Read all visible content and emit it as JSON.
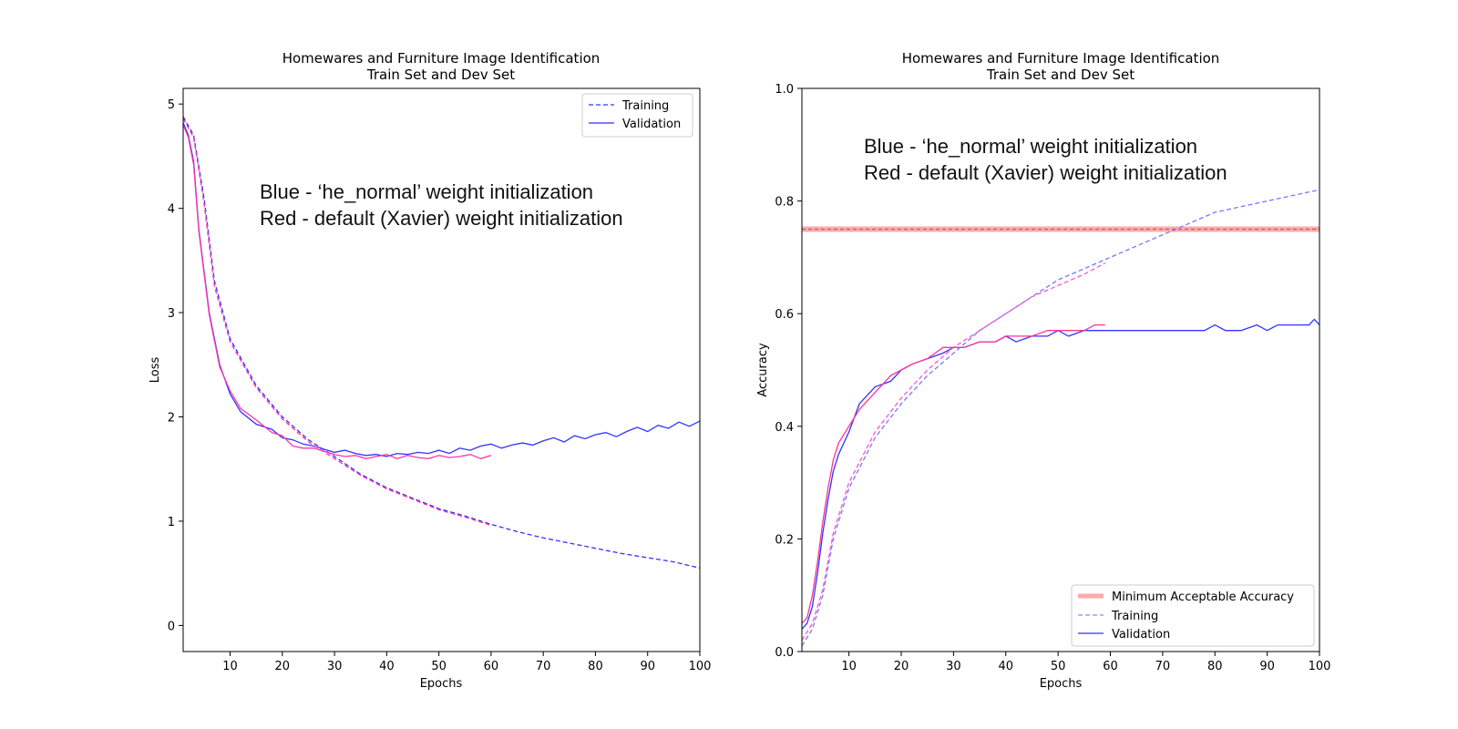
{
  "chart_data": [
    {
      "type": "line",
      "title": "Homewares and Furniture Image Identification",
      "subtitle": "Train Set and Dev Set",
      "xlabel": "Epochs",
      "ylabel": "Loss",
      "xlim": [
        1,
        100
      ],
      "ylim": [
        -0.25,
        5.15
      ],
      "xticks": [
        10,
        20,
        30,
        40,
        50,
        60,
        70,
        80,
        90,
        100
      ],
      "yticks": [
        0,
        1,
        2,
        3,
        4,
        5
      ],
      "grid": false,
      "annotation": [
        "Blue - ‘he_normal’ weight initialization",
        "Red - default (Xavier) weight initialization"
      ],
      "legend": {
        "position": "top-right",
        "entries": [
          {
            "label": "Training",
            "style": "dashed",
            "color": "#3333ff"
          },
          {
            "label": "Validation",
            "style": "solid",
            "color": "#3333ff"
          }
        ]
      },
      "series": [
        {
          "name": "Training (he_normal)",
          "color": "#3333ff",
          "style": "dashed",
          "points": [
            [
              1,
              4.88
            ],
            [
              3,
              4.7
            ],
            [
              5,
              4.1
            ],
            [
              7,
              3.3
            ],
            [
              10,
              2.75
            ],
            [
              15,
              2.3
            ],
            [
              20,
              2.0
            ],
            [
              25,
              1.78
            ],
            [
              30,
              1.62
            ],
            [
              35,
              1.45
            ],
            [
              40,
              1.32
            ],
            [
              45,
              1.22
            ],
            [
              50,
              1.12
            ],
            [
              55,
              1.05
            ],
            [
              60,
              0.97
            ],
            [
              65,
              0.9
            ],
            [
              70,
              0.84
            ],
            [
              75,
              0.79
            ],
            [
              80,
              0.74
            ],
            [
              85,
              0.69
            ],
            [
              90,
              0.65
            ],
            [
              95,
              0.61
            ],
            [
              100,
              0.55
            ]
          ]
        },
        {
          "name": "Validation (he_normal)",
          "color": "#3333ff",
          "style": "solid",
          "points": [
            [
              1,
              4.82
            ],
            [
              2,
              4.7
            ],
            [
              3,
              4.45
            ],
            [
              4,
              3.8
            ],
            [
              5,
              3.4
            ],
            [
              6,
              3.0
            ],
            [
              8,
              2.5
            ],
            [
              10,
              2.22
            ],
            [
              12,
              2.05
            ],
            [
              15,
              1.93
            ],
            [
              18,
              1.88
            ],
            [
              20,
              1.8
            ],
            [
              22,
              1.78
            ],
            [
              24,
              1.74
            ],
            [
              26,
              1.72
            ],
            [
              28,
              1.69
            ],
            [
              30,
              1.66
            ],
            [
              32,
              1.68
            ],
            [
              34,
              1.65
            ],
            [
              36,
              1.63
            ],
            [
              38,
              1.64
            ],
            [
              40,
              1.62
            ],
            [
              42,
              1.65
            ],
            [
              44,
              1.64
            ],
            [
              46,
              1.66
            ],
            [
              48,
              1.65
            ],
            [
              50,
              1.68
            ],
            [
              52,
              1.65
            ],
            [
              54,
              1.7
            ],
            [
              56,
              1.68
            ],
            [
              58,
              1.72
            ],
            [
              60,
              1.74
            ],
            [
              62,
              1.7
            ],
            [
              64,
              1.73
            ],
            [
              66,
              1.75
            ],
            [
              68,
              1.73
            ],
            [
              70,
              1.77
            ],
            [
              72,
              1.8
            ],
            [
              74,
              1.76
            ],
            [
              76,
              1.82
            ],
            [
              78,
              1.79
            ],
            [
              80,
              1.83
            ],
            [
              82,
              1.85
            ],
            [
              84,
              1.81
            ],
            [
              86,
              1.86
            ],
            [
              88,
              1.9
            ],
            [
              90,
              1.86
            ],
            [
              92,
              1.92
            ],
            [
              94,
              1.89
            ],
            [
              96,
              1.95
            ],
            [
              98,
              1.91
            ],
            [
              100,
              1.96
            ]
          ]
        },
        {
          "name": "Training (Xavier)",
          "color": "#ff33aa",
          "style": "dashed",
          "points": [
            [
              1,
              4.86
            ],
            [
              3,
              4.68
            ],
            [
              5,
              4.05
            ],
            [
              7,
              3.25
            ],
            [
              10,
              2.72
            ],
            [
              15,
              2.28
            ],
            [
              20,
              1.98
            ],
            [
              25,
              1.76
            ],
            [
              30,
              1.6
            ],
            [
              35,
              1.44
            ],
            [
              40,
              1.31
            ],
            [
              45,
              1.21
            ],
            [
              50,
              1.11
            ],
            [
              55,
              1.04
            ],
            [
              60,
              0.96
            ]
          ]
        },
        {
          "name": "Validation (Xavier)",
          "color": "#ff33aa",
          "style": "solid",
          "points": [
            [
              1,
              4.8
            ],
            [
              2,
              4.68
            ],
            [
              3,
              4.42
            ],
            [
              4,
              3.78
            ],
            [
              5,
              3.38
            ],
            [
              6,
              2.98
            ],
            [
              8,
              2.48
            ],
            [
              10,
              2.25
            ],
            [
              12,
              2.08
            ],
            [
              15,
              1.97
            ],
            [
              18,
              1.85
            ],
            [
              20,
              1.82
            ],
            [
              22,
              1.72
            ],
            [
              24,
              1.7
            ],
            [
              26,
              1.7
            ],
            [
              28,
              1.67
            ],
            [
              30,
              1.64
            ],
            [
              32,
              1.62
            ],
            [
              34,
              1.63
            ],
            [
              36,
              1.6
            ],
            [
              38,
              1.62
            ],
            [
              40,
              1.64
            ],
            [
              42,
              1.6
            ],
            [
              44,
              1.63
            ],
            [
              46,
              1.61
            ],
            [
              48,
              1.6
            ],
            [
              50,
              1.63
            ],
            [
              52,
              1.61
            ],
            [
              54,
              1.62
            ],
            [
              56,
              1.64
            ],
            [
              58,
              1.6
            ],
            [
              60,
              1.63
            ]
          ]
        }
      ]
    },
    {
      "type": "line",
      "title": "Homewares and Furniture Image Identification",
      "subtitle": "Train Set and Dev Set",
      "xlabel": "Epochs",
      "ylabel": "Accuracy",
      "xlim": [
        1,
        100
      ],
      "ylim": [
        0.0,
        1.0
      ],
      "xticks": [
        10,
        20,
        30,
        40,
        50,
        60,
        70,
        80,
        90,
        100
      ],
      "yticks": [
        0.0,
        0.2,
        0.4,
        0.6,
        0.8,
        1.0
      ],
      "ytick_labels": [
        "0.0",
        "0.2",
        "0.4",
        "0.6",
        "0.8",
        "1.0"
      ],
      "grid": false,
      "annotation": [
        "Blue - ‘he_normal’ weight initialization",
        "Red - default (Xavier) weight initialization"
      ],
      "reference_line": {
        "label": "Minimum Acceptable Accuracy",
        "value": 0.75,
        "color": "#ffaaaa"
      },
      "legend": {
        "position": "bottom-right",
        "entries": [
          {
            "label": "Minimum Acceptable Accuracy",
            "style": "thick",
            "color": "#ffaaaa"
          },
          {
            "label": "Training",
            "style": "dashed",
            "color": "#8888ff"
          },
          {
            "label": "Validation",
            "style": "solid",
            "color": "#3333ff"
          }
        ]
      },
      "series": [
        {
          "name": "Training (he_normal)",
          "color": "#7777ff",
          "style": "dashed",
          "points": [
            [
              1,
              0.01
            ],
            [
              3,
              0.04
            ],
            [
              5,
              0.1
            ],
            [
              7,
              0.2
            ],
            [
              10,
              0.29
            ],
            [
              15,
              0.38
            ],
            [
              20,
              0.44
            ],
            [
              25,
              0.49
            ],
            [
              30,
              0.53
            ],
            [
              35,
              0.57
            ],
            [
              40,
              0.6
            ],
            [
              45,
              0.63
            ],
            [
              50,
              0.66
            ],
            [
              55,
              0.68
            ],
            [
              60,
              0.7
            ],
            [
              65,
              0.72
            ],
            [
              70,
              0.74
            ],
            [
              75,
              0.76
            ],
            [
              80,
              0.78
            ],
            [
              85,
              0.79
            ],
            [
              90,
              0.8
            ],
            [
              95,
              0.81
            ],
            [
              100,
              0.82
            ]
          ]
        },
        {
          "name": "Validation (he_normal)",
          "color": "#3333ff",
          "style": "solid",
          "points": [
            [
              1,
              0.04
            ],
            [
              2,
              0.05
            ],
            [
              3,
              0.08
            ],
            [
              4,
              0.14
            ],
            [
              5,
              0.21
            ],
            [
              6,
              0.27
            ],
            [
              7,
              0.32
            ],
            [
              8,
              0.35
            ],
            [
              10,
              0.39
            ],
            [
              12,
              0.44
            ],
            [
              15,
              0.47
            ],
            [
              18,
              0.48
            ],
            [
              20,
              0.5
            ],
            [
              22,
              0.51
            ],
            [
              25,
              0.52
            ],
            [
              28,
              0.53
            ],
            [
              30,
              0.54
            ],
            [
              32,
              0.54
            ],
            [
              35,
              0.55
            ],
            [
              38,
              0.55
            ],
            [
              40,
              0.56
            ],
            [
              42,
              0.55
            ],
            [
              45,
              0.56
            ],
            [
              48,
              0.56
            ],
            [
              50,
              0.57
            ],
            [
              52,
              0.56
            ],
            [
              55,
              0.57
            ],
            [
              58,
              0.57
            ],
            [
              60,
              0.57
            ],
            [
              62,
              0.57
            ],
            [
              65,
              0.57
            ],
            [
              68,
              0.57
            ],
            [
              70,
              0.57
            ],
            [
              72,
              0.57
            ],
            [
              75,
              0.57
            ],
            [
              78,
              0.57
            ],
            [
              80,
              0.58
            ],
            [
              82,
              0.57
            ],
            [
              85,
              0.57
            ],
            [
              88,
              0.58
            ],
            [
              90,
              0.57
            ],
            [
              92,
              0.58
            ],
            [
              95,
              0.58
            ],
            [
              98,
              0.58
            ],
            [
              99,
              0.59
            ],
            [
              100,
              0.58
            ]
          ]
        },
        {
          "name": "Training (Xavier)",
          "color": "#ff55cc",
          "style": "dashed",
          "points": [
            [
              1,
              0.02
            ],
            [
              3,
              0.05
            ],
            [
              5,
              0.11
            ],
            [
              7,
              0.21
            ],
            [
              10,
              0.3
            ],
            [
              15,
              0.39
            ],
            [
              20,
              0.45
            ],
            [
              25,
              0.5
            ],
            [
              30,
              0.54
            ],
            [
              35,
              0.57
            ],
            [
              40,
              0.6
            ],
            [
              45,
              0.63
            ],
            [
              50,
              0.65
            ],
            [
              55,
              0.67
            ],
            [
              59,
              0.69
            ]
          ]
        },
        {
          "name": "Validation (Xavier)",
          "color": "#ff3399",
          "style": "solid",
          "points": [
            [
              1,
              0.05
            ],
            [
              2,
              0.06
            ],
            [
              3,
              0.1
            ],
            [
              4,
              0.16
            ],
            [
              5,
              0.23
            ],
            [
              6,
              0.29
            ],
            [
              7,
              0.34
            ],
            [
              8,
              0.37
            ],
            [
              10,
              0.4
            ],
            [
              12,
              0.43
            ],
            [
              15,
              0.46
            ],
            [
              18,
              0.49
            ],
            [
              20,
              0.5
            ],
            [
              22,
              0.51
            ],
            [
              25,
              0.52
            ],
            [
              28,
              0.54
            ],
            [
              30,
              0.54
            ],
            [
              32,
              0.54
            ],
            [
              35,
              0.55
            ],
            [
              38,
              0.55
            ],
            [
              40,
              0.56
            ],
            [
              42,
              0.56
            ],
            [
              45,
              0.56
            ],
            [
              48,
              0.57
            ],
            [
              50,
              0.57
            ],
            [
              52,
              0.57
            ],
            [
              55,
              0.57
            ],
            [
              57,
              0.58
            ],
            [
              59,
              0.58
            ]
          ]
        }
      ]
    }
  ]
}
